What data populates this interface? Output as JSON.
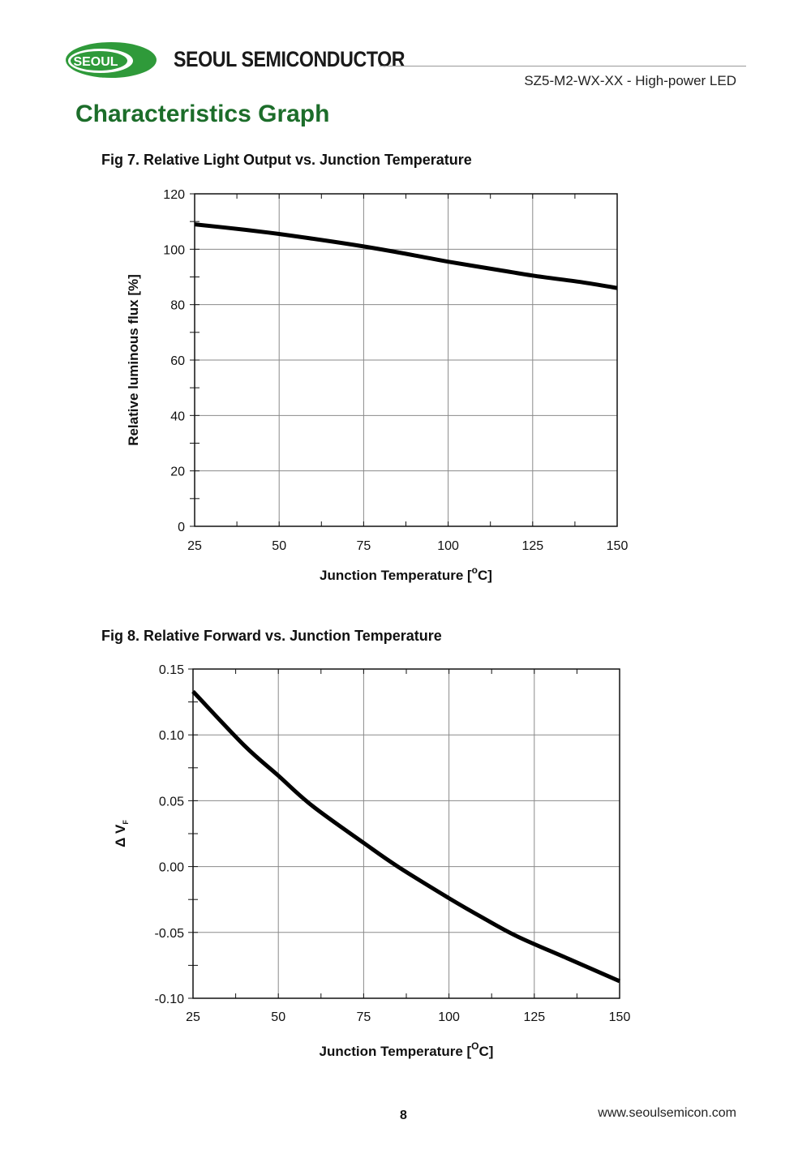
{
  "header": {
    "logo_text": "SEOUL",
    "company_name": "SEOUL SEMICONDUCTOR",
    "doc_subtitle": "SZ5-M2-WX-XX - High-power LED",
    "colors": {
      "logo_green": "#2f9a3a",
      "title_green": "#1c6d2a"
    }
  },
  "section_title": "Characteristics Graph",
  "chart_data": [
    {
      "id": "fig7",
      "type": "line",
      "title": "Fig 7. Relative Light Output vs. Junction Temperature",
      "xlabel": "Junction Temperature [°C]",
      "xlabel_parts": {
        "before": "Junction Temperature [",
        "sup": "o",
        "after": "C]"
      },
      "ylabel": "Relative luminous flux [%]",
      "xlim": [
        25,
        150
      ],
      "ylim": [
        0,
        120
      ],
      "xticks": [
        25,
        50,
        75,
        100,
        125,
        150
      ],
      "yticks": [
        0,
        20,
        40,
        60,
        80,
        100,
        120
      ],
      "xtick_labels": [
        "25",
        "50",
        "75",
        "100",
        "125",
        "150"
      ],
      "ytick_labels": [
        "0",
        "20",
        "40",
        "60",
        "80",
        "100",
        "120"
      ],
      "minor_x_step": 12.5,
      "minor_y_step": 10,
      "grid": true,
      "series": [
        {
          "name": "Relative luminous flux",
          "x": [
            25,
            40,
            50,
            60,
            75,
            90,
            100,
            115,
            125,
            140,
            150
          ],
          "y": [
            109,
            107,
            105.5,
            103.8,
            101,
            97.8,
            95.5,
            92.5,
            90.5,
            88,
            86
          ]
        }
      ]
    },
    {
      "id": "fig8",
      "type": "line",
      "title": "Fig 8. Relative Forward vs. Junction Temperature",
      "xlabel": "Junction Temperature [°C]",
      "xlabel_parts": {
        "before": "Junction Temperature [",
        "sup": "O",
        "after": "C]"
      },
      "ylabel": "Δ VF",
      "ylabel_parts": {
        "main": "Δ V",
        "sub": "F"
      },
      "xlim": [
        25,
        150
      ],
      "ylim": [
        -0.1,
        0.15
      ],
      "xticks": [
        25,
        50,
        75,
        100,
        125,
        150
      ],
      "yticks": [
        -0.1,
        -0.05,
        0,
        0.05,
        0.1,
        0.15
      ],
      "xtick_labels": [
        "25",
        "50",
        "75",
        "100",
        "125",
        "150"
      ],
      "ytick_labels": [
        "-0.10",
        "-0.05",
        "0.00",
        "0.05",
        "0.10",
        "0.15"
      ],
      "minor_x_step": 12.5,
      "minor_y_step": 0.025,
      "grid": true,
      "series": [
        {
          "name": "ΔVF",
          "x": [
            25,
            40,
            50,
            60,
            75,
            85,
            100,
            110,
            120,
            135,
            150
          ],
          "y": [
            0.133,
            0.092,
            0.069,
            0.046,
            0.018,
            0.0,
            -0.024,
            -0.039,
            -0.053,
            -0.07,
            -0.087
          ]
        }
      ]
    }
  ],
  "footer": {
    "page_number": "8",
    "website": "www.seoulsemicon.com"
  }
}
